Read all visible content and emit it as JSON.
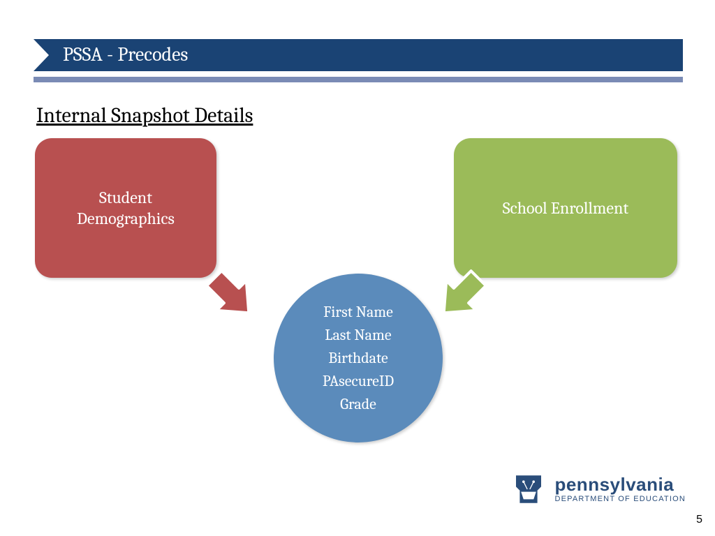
{
  "header": {
    "title": "PSSA - Precodes",
    "title_bg": "#1a4374",
    "title_color": "#ffffff",
    "accent_color": "#7a8bb5"
  },
  "subtitle": "Internal Snapshot Details",
  "diagram": {
    "type": "infographic",
    "left_box": {
      "label": "Student\nDemographics",
      "bg": "#b85050",
      "text_color": "#ffffff",
      "border_radius": 24
    },
    "right_box": {
      "label": "School Enrollment",
      "bg": "#9bbb59",
      "text_color": "#ffffff",
      "border_radius": 24
    },
    "arrow_left_color": "#b85050",
    "arrow_right_color": "#9bbb59",
    "circle": {
      "bg": "#5b8bbb",
      "text_color": "#ffffff",
      "items": [
        "First Name",
        "Last Name",
        "Birthdate",
        "PAsecureID",
        "Grade"
      ]
    }
  },
  "footer": {
    "logo_main": "pennsylvania",
    "logo_sub": "DEPARTMENT OF EDUCATION",
    "logo_color": "#2a4d7a",
    "page_number": "5"
  }
}
